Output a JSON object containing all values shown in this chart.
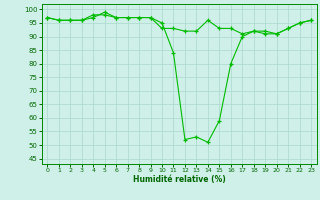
{
  "title": "",
  "xlabel": "Humidité relative (%)",
  "ylabel": "",
  "background_color": "#cff0e8",
  "grid_color": "#aad8cc",
  "line_color": "#00bb00",
  "marker_color": "#00bb00",
  "xlim": [
    -0.5,
    23.5
  ],
  "ylim": [
    43,
    102
  ],
  "yticks": [
    45,
    50,
    55,
    60,
    65,
    70,
    75,
    80,
    85,
    90,
    95,
    100
  ],
  "xticks": [
    0,
    1,
    2,
    3,
    4,
    5,
    6,
    7,
    8,
    9,
    10,
    11,
    12,
    13,
    14,
    15,
    16,
    17,
    18,
    19,
    20,
    21,
    22,
    23
  ],
  "series": [
    [
      97,
      96,
      96,
      96,
      97,
      99,
      97,
      97,
      97,
      97,
      95,
      84,
      52,
      53,
      51,
      59,
      80,
      90,
      92,
      92,
      91,
      93,
      95,
      96
    ],
    [
      97,
      96,
      96,
      96,
      98,
      98,
      97,
      97,
      97,
      97,
      93,
      93,
      92,
      92,
      96,
      93,
      93,
      91,
      92,
      91,
      91,
      93,
      95,
      96
    ]
  ],
  "figwidth": 3.2,
  "figheight": 2.0,
  "dpi": 100
}
